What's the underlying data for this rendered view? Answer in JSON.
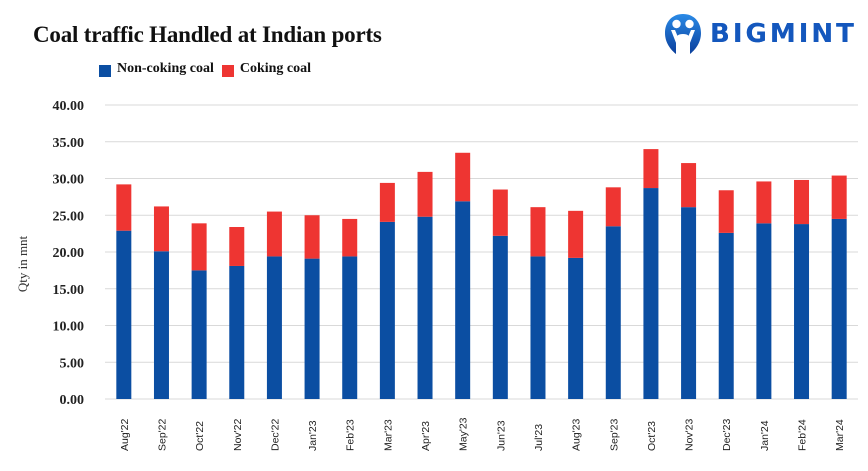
{
  "brand": {
    "name": "BIGMINT",
    "icon": "bigmint-people-logo-icon"
  },
  "chart_data": {
    "type": "bar",
    "stacked": true,
    "title": "Coal traffic Handled at Indian ports",
    "xlabel": "",
    "ylabel": "Qty in mnt",
    "ylim": [
      0,
      40
    ],
    "yticks": [
      "0.00",
      "5.00",
      "10.00",
      "15.00",
      "20.00",
      "25.00",
      "30.00",
      "35.00",
      "40.00"
    ],
    "grid": true,
    "legend_position": "top-left",
    "categories": [
      "Aug'22",
      "Sep'22",
      "Oct'22",
      "Nov'22",
      "Dec'22",
      "Jan'23",
      "Feb'23",
      "Mar'23",
      "Apr'23",
      "May'23",
      "Jun'23",
      "Jul'23",
      "Aug'23",
      "Sep'23",
      "Oct'23",
      "Nov'23",
      "Dec'23",
      "Jan'24",
      "Feb'24",
      "Mar'24"
    ],
    "series": [
      {
        "name": "Non-coking coal",
        "color": "#0b4ea2",
        "values": [
          22.9,
          20.1,
          17.5,
          18.1,
          19.4,
          19.1,
          19.4,
          24.1,
          24.8,
          26.9,
          22.2,
          19.4,
          19.2,
          23.5,
          28.7,
          26.1,
          22.6,
          23.9,
          23.8,
          24.5
        ]
      },
      {
        "name": "Coking coal",
        "color": "#ee3532",
        "values": [
          6.3,
          6.1,
          6.4,
          5.3,
          6.1,
          5.9,
          5.1,
          5.3,
          6.1,
          6.6,
          6.3,
          6.7,
          6.4,
          5.3,
          5.3,
          6.0,
          5.8,
          5.7,
          6.0,
          5.9
        ]
      }
    ]
  }
}
